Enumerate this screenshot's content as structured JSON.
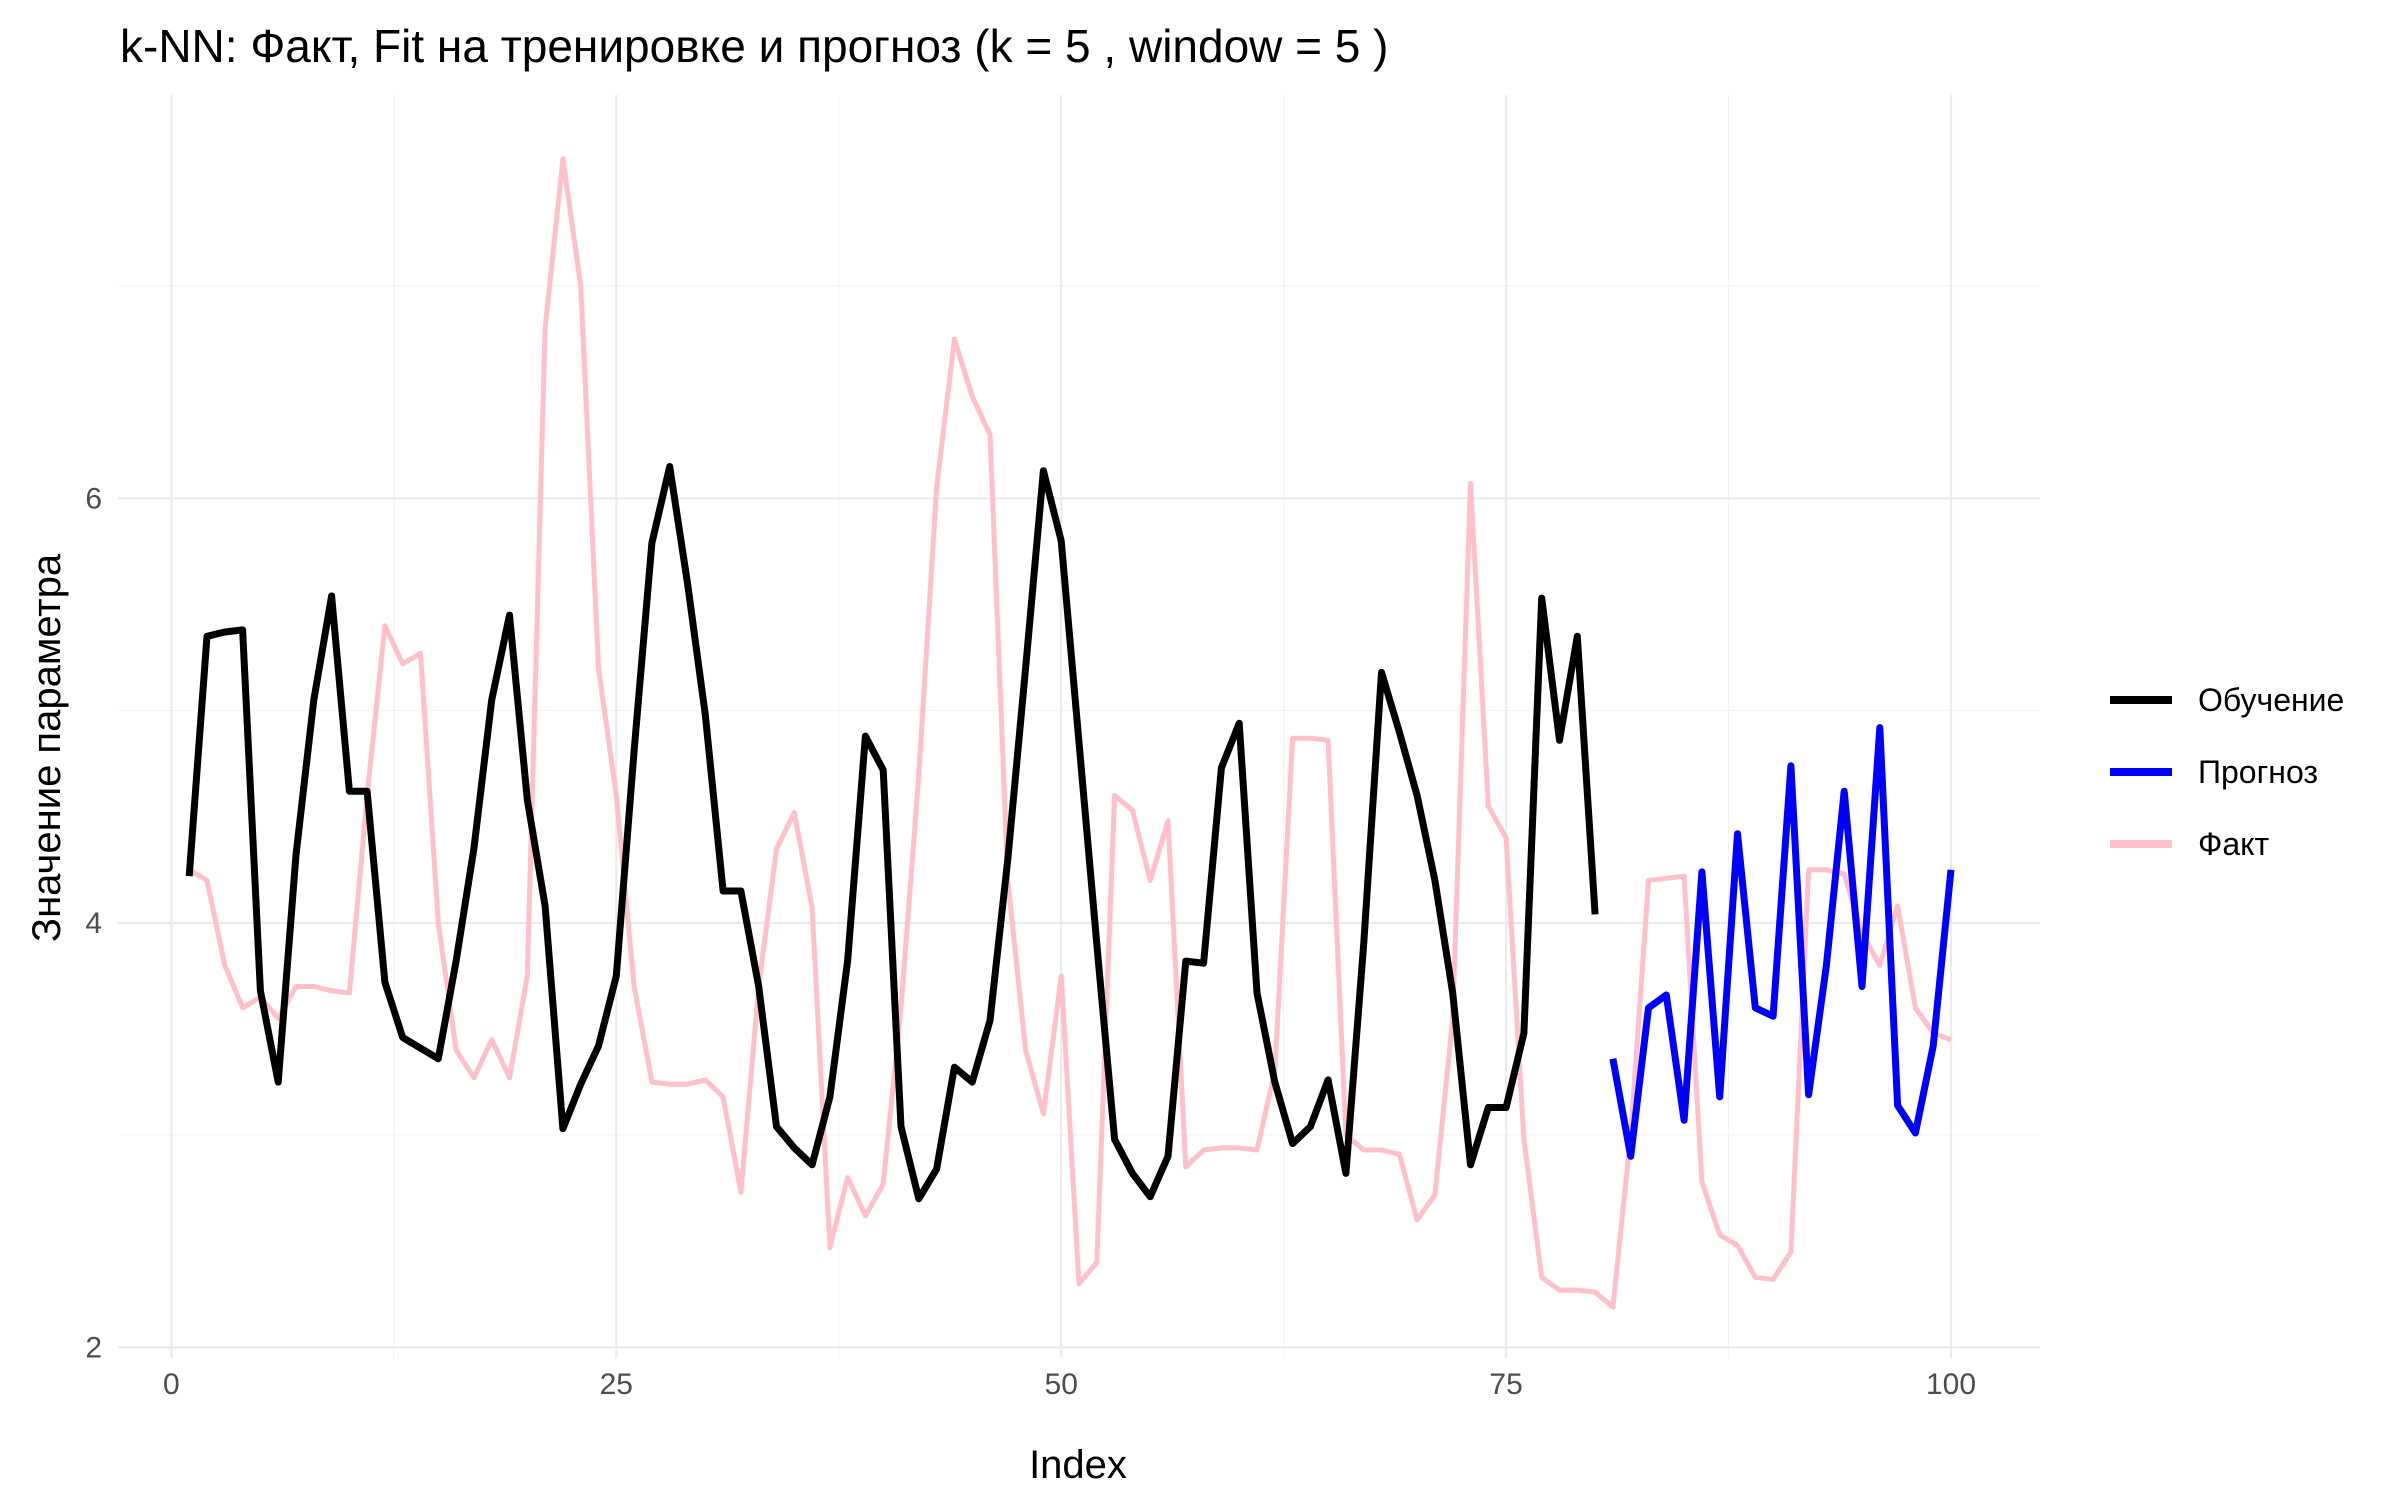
{
  "chart_data": {
    "type": "line",
    "title": "k-NN: Факт, Fit на тренировке и прогноз (k = 5 , window = 5 )",
    "xlabel": "Index",
    "ylabel": "Значение параметра",
    "xlim": [
      -3,
      105
    ],
    "ylim": [
      1.95,
      7.9
    ],
    "x_ticks": [
      0,
      25,
      50,
      75,
      100
    ],
    "x_tick_labels": [
      "0",
      "25",
      "50",
      "75",
      "100"
    ],
    "y_ticks": [
      2,
      4,
      6
    ],
    "y_tick_labels": [
      "2",
      "4",
      "6"
    ],
    "grid": true,
    "legend_position": "right",
    "series": [
      {
        "name": "Факт",
        "color": "#ffc0cb",
        "x": [
          1,
          2,
          3,
          4,
          5,
          6,
          7,
          8,
          9,
          10,
          11,
          12,
          13,
          14,
          15,
          16,
          17,
          18,
          19,
          20,
          21,
          22,
          23,
          24,
          25,
          26,
          27,
          28,
          29,
          30,
          31,
          32,
          33,
          34,
          35,
          36,
          37,
          38,
          39,
          40,
          41,
          42,
          43,
          44,
          45,
          46,
          47,
          48,
          49,
          50,
          51,
          52,
          53,
          54,
          55,
          56,
          57,
          58,
          59,
          60,
          61,
          62,
          63,
          64,
          65,
          66,
          67,
          68,
          69,
          70,
          71,
          72,
          73,
          74,
          75,
          76,
          77,
          78,
          79,
          80,
          81,
          82,
          83,
          84,
          85,
          86,
          87,
          88,
          89,
          90,
          91,
          92,
          93,
          94,
          95,
          96,
          97,
          98,
          99,
          100
        ],
        "values": [
          4.25,
          4.2,
          3.8,
          3.6,
          3.65,
          3.55,
          3.7,
          3.7,
          3.68,
          3.67,
          4.6,
          5.4,
          5.22,
          5.27,
          4.0,
          3.4,
          3.27,
          3.45,
          3.27,
          3.75,
          6.8,
          7.6,
          7.0,
          5.2,
          4.6,
          3.7,
          3.25,
          3.24,
          3.24,
          3.26,
          3.18,
          2.73,
          3.7,
          4.35,
          4.52,
          4.07,
          2.47,
          2.8,
          2.62,
          2.77,
          3.6,
          4.7,
          6.05,
          6.75,
          6.48,
          6.3,
          4.2,
          3.4,
          3.1,
          3.75,
          2.3,
          2.4,
          4.6,
          4.53,
          4.2,
          4.48,
          2.85,
          2.93,
          2.94,
          2.94,
          2.93,
          3.3,
          4.87,
          4.87,
          4.86,
          3.0,
          2.93,
          2.93,
          2.91,
          2.6,
          2.72,
          3.55,
          6.07,
          4.55,
          4.4,
          2.98,
          2.33,
          2.27,
          2.27,
          2.26,
          2.19,
          3.0,
          4.2,
          4.21,
          4.22,
          2.78,
          2.53,
          2.48,
          2.33,
          2.32,
          2.45,
          4.25,
          4.25,
          4.23,
          3.95,
          3.8,
          4.08,
          3.6,
          3.48,
          3.45
        ]
      },
      {
        "name": "Обучение",
        "color": "#000000",
        "x": [
          1,
          2,
          3,
          4,
          5,
          6,
          7,
          8,
          9,
          10,
          11,
          12,
          13,
          14,
          15,
          16,
          17,
          18,
          19,
          20,
          21,
          22,
          23,
          24,
          25,
          26,
          27,
          28,
          29,
          30,
          31,
          32,
          33,
          34,
          35,
          36,
          37,
          38,
          39,
          40,
          41,
          42,
          43,
          44,
          45,
          46,
          47,
          48,
          49,
          50,
          51,
          52,
          53,
          54,
          55,
          56,
          57,
          58,
          59,
          60,
          61,
          62,
          63,
          64,
          65,
          66,
          67,
          68,
          69,
          70,
          71,
          72,
          73,
          74,
          75,
          76,
          77,
          78,
          79,
          80
        ],
        "values": [
          4.22,
          5.35,
          5.37,
          5.38,
          3.68,
          3.25,
          4.32,
          5.05,
          5.54,
          4.62,
          4.62,
          3.72,
          3.46,
          3.41,
          3.36,
          3.82,
          4.35,
          5.05,
          5.45,
          4.58,
          4.08,
          3.03,
          3.24,
          3.42,
          3.75,
          4.81,
          5.79,
          6.15,
          5.6,
          4.98,
          4.15,
          4.15,
          3.7,
          3.04,
          2.94,
          2.86,
          3.18,
          3.82,
          4.88,
          4.72,
          3.04,
          2.7,
          2.84,
          3.32,
          3.25,
          3.54,
          4.3,
          5.2,
          6.13,
          5.8,
          4.85,
          3.9,
          2.98,
          2.82,
          2.71,
          2.9,
          3.82,
          3.81,
          4.73,
          4.94,
          3.67,
          3.25,
          2.96,
          3.04,
          3.26,
          2.82,
          3.9,
          5.18,
          4.9,
          4.6,
          4.2,
          3.67,
          2.86,
          3.13,
          3.13,
          3.48,
          5.53,
          4.86,
          5.35,
          4.04
        ]
      },
      {
        "name": "Прогноз",
        "color": "#0000ff",
        "x": [
          81,
          82,
          83,
          84,
          85,
          86,
          87,
          88,
          89,
          90,
          91,
          92,
          93,
          94,
          95,
          96,
          97,
          98,
          99,
          100
        ],
        "values": [
          3.36,
          2.9,
          3.6,
          3.66,
          3.07,
          4.24,
          3.18,
          4.42,
          3.6,
          3.56,
          4.74,
          3.19,
          3.8,
          4.62,
          3.7,
          4.92,
          3.14,
          3.01,
          3.42,
          4.25
        ]
      }
    ],
    "legend": {
      "entries": [
        "Обучение",
        "Прогноз",
        "Факт"
      ],
      "colors": [
        "#000000",
        "#0000ff",
        "#ffc0cb"
      ]
    }
  }
}
